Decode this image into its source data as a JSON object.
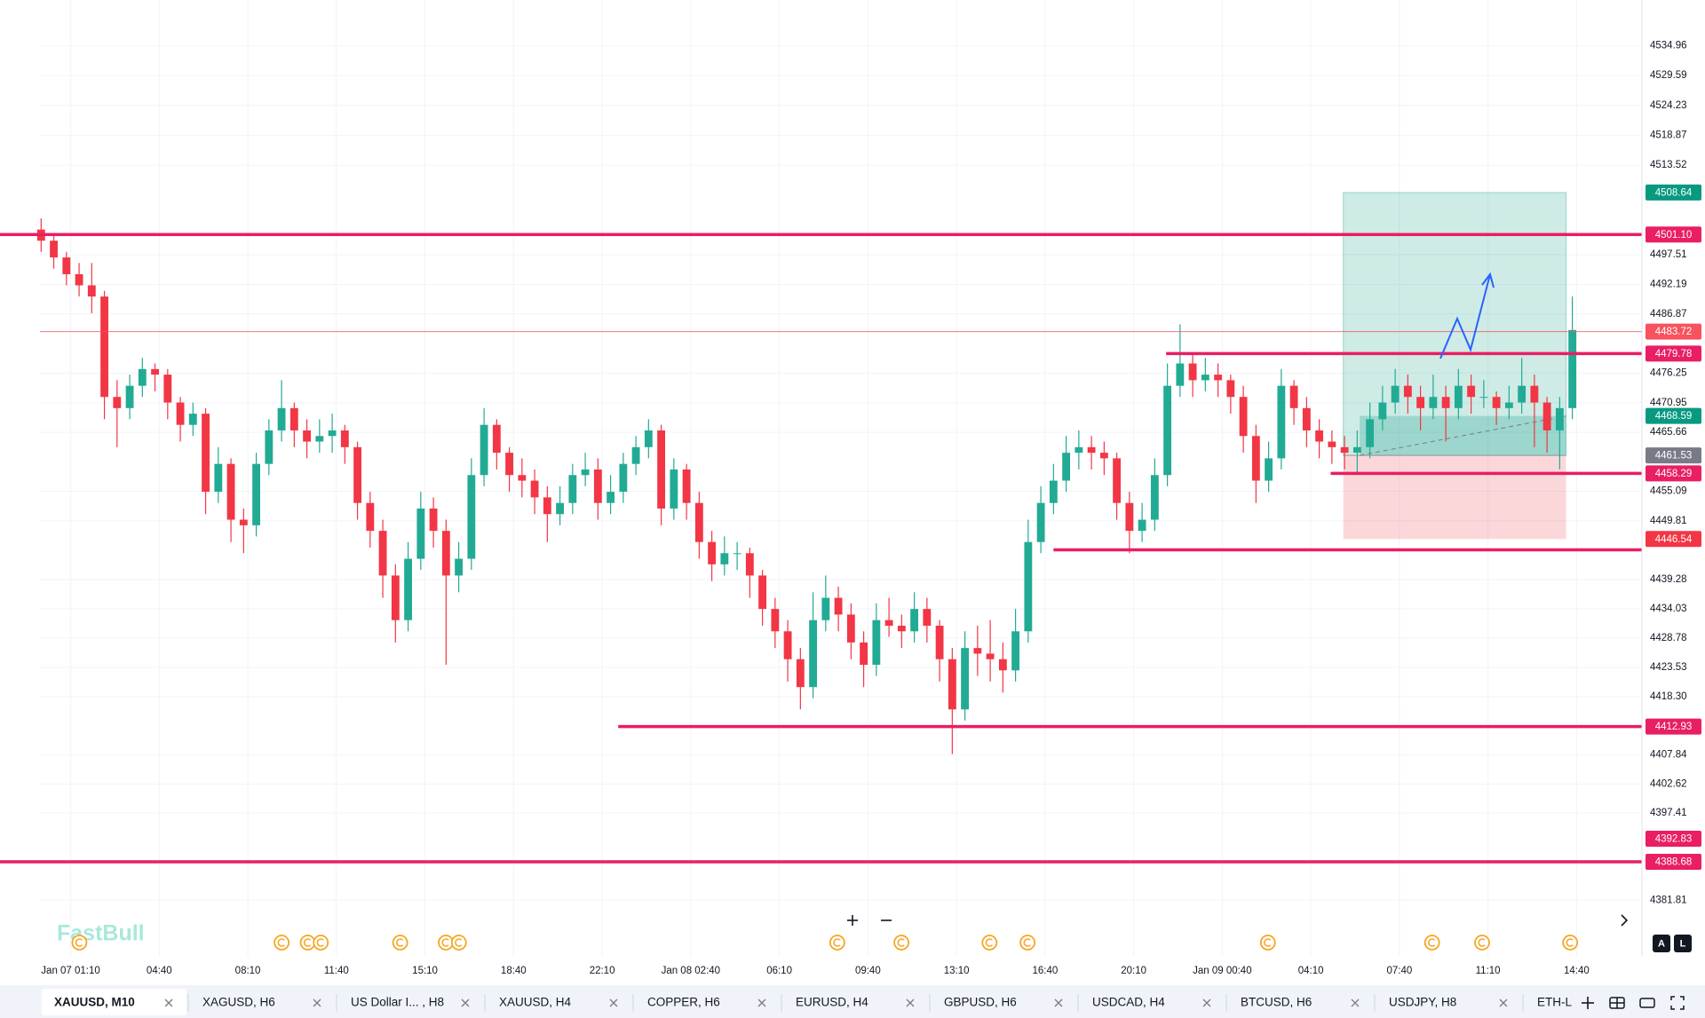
{
  "watermark": "FastBull",
  "tabs": [
    "XAUUSD, M10",
    "XAGUSD, H6",
    "US Dollar I... , H8",
    "XAUUSD, H4",
    "COPPER, H6",
    "EURUSD, H4",
    "GBPUSD, H6",
    "USDCAD, H4",
    "BTCUSD, H6",
    "USDJPY, H8",
    "ETH-L"
  ],
  "scale_buttons": [
    "A",
    "L"
  ],
  "chart_data": {
    "type": "candlestick",
    "up_color": "#22ab94",
    "down_color": "#f23645",
    "grid": true,
    "xlim": [
      -3.25,
      126.5
    ],
    "ylim": [
      4371.67,
      4543.14
    ],
    "xticks": [
      {
        "value": 2.333,
        "label": "Jan 07 01:10"
      },
      {
        "value": 9.333,
        "label": "04:40"
      },
      {
        "value": 16.333,
        "label": "08:10"
      },
      {
        "value": 23.333,
        "label": "11:40"
      },
      {
        "value": 30.333,
        "label": "15:10"
      },
      {
        "value": 37.333,
        "label": "18:40"
      },
      {
        "value": 44.333,
        "label": "22:10"
      },
      {
        "value": 51.333,
        "label": "Jan 08 02:40"
      },
      {
        "value": 58.333,
        "label": "06:10"
      },
      {
        "value": 65.333,
        "label": "09:40"
      },
      {
        "value": 72.333,
        "label": "13:10"
      },
      {
        "value": 79.333,
        "label": "16:40"
      },
      {
        "value": 86.333,
        "label": "20:10"
      },
      {
        "value": 93.333,
        "label": "Jan 09 00:40"
      },
      {
        "value": 100.333,
        "label": "04:10"
      },
      {
        "value": 107.333,
        "label": "07:40"
      },
      {
        "value": 114.333,
        "label": "11:10"
      },
      {
        "value": 121.333,
        "label": "14:40"
      }
    ],
    "yticks": [
      4534.96,
      4529.59,
      4524.23,
      4518.87,
      4513.52,
      4497.51,
      4492.19,
      4486.87,
      4476.25,
      4470.95,
      4465.66,
      4455.09,
      4449.81,
      4439.28,
      4434.03,
      4428.78,
      4423.53,
      {
        "value": 4418.3,
        "label": "4418.30"
      },
      4407.84,
      4402.62,
      4397.41,
      4381.81
    ],
    "ohlc": [
      [
        4502,
        4504,
        4498,
        4500
      ],
      [
        4500,
        4501,
        4495,
        4497
      ],
      [
        4497,
        4498,
        4492,
        4494
      ],
      [
        4494,
        4496,
        4490,
        4492
      ],
      [
        4492,
        4496,
        4487,
        4490
      ],
      [
        4490,
        4491,
        4468,
        4472
      ],
      [
        4472,
        4475,
        4463,
        4470
      ],
      [
        4470,
        4476,
        4468,
        4474
      ],
      [
        4474,
        4479,
        4472,
        4477
      ],
      [
        4477,
        4478,
        4473,
        4476
      ],
      [
        4476,
        4477,
        4468,
        4471
      ],
      [
        4471,
        4472,
        4464,
        4467
      ],
      [
        4467,
        4471,
        4465,
        4469
      ],
      [
        4469,
        4470,
        4451,
        4455
      ],
      [
        4455,
        4463,
        4453,
        4460
      ],
      [
        4460,
        4461,
        4446,
        4450
      ],
      [
        4450,
        4452,
        4444,
        4449
      ],
      [
        4449,
        4462,
        4447,
        4460
      ],
      [
        4460,
        4468,
        4458,
        4466
      ],
      [
        4466,
        4475,
        4464,
        4470
      ],
      [
        4470,
        4471,
        4463,
        4466
      ],
      [
        4466,
        4468,
        4461,
        4464
      ],
      [
        4464,
        4468,
        4462,
        4465
      ],
      [
        4465,
        4469,
        4462,
        4466
      ],
      [
        4466,
        4467,
        4460,
        4463
      ],
      [
        4463,
        4464,
        4450,
        4453
      ],
      [
        4453,
        4455,
        4445,
        4448
      ],
      [
        4448,
        4450,
        4436,
        4440
      ],
      [
        4440,
        4442,
        4428,
        4432
      ],
      [
        4432,
        4446,
        4430,
        4443
      ],
      [
        4443,
        4455,
        4441,
        4452
      ],
      [
        4452,
        4454,
        4445,
        4448
      ],
      [
        4448,
        4450,
        4424,
        4440
      ],
      [
        4440,
        4446,
        4437,
        4443
      ],
      [
        4443,
        4461,
        4441,
        4458
      ],
      [
        4458,
        4470,
        4456,
        4467
      ],
      [
        4467,
        4468,
        4459,
        4462
      ],
      [
        4462,
        4463,
        4455,
        4458
      ],
      [
        4458,
        4461,
        4454,
        4457
      ],
      [
        4457,
        4459,
        4451,
        4454
      ],
      [
        4454,
        4456,
        4446,
        4451
      ],
      [
        4451,
        4456,
        4449,
        4453
      ],
      [
        4453,
        4460,
        4451,
        4458
      ],
      [
        4458,
        4462,
        4456,
        4459
      ],
      [
        4459,
        4461,
        4450,
        4453
      ],
      [
        4453,
        4458,
        4451,
        4455
      ],
      [
        4455,
        4462,
        4453,
        4460
      ],
      [
        4460,
        4465,
        4458,
        4463
      ],
      [
        4463,
        4468,
        4461,
        4466
      ],
      [
        4466,
        4467,
        4449,
        4452
      ],
      [
        4452,
        4461,
        4450,
        4459
      ],
      [
        4459,
        4460,
        4450,
        4453
      ],
      [
        4453,
        4455,
        4443,
        4446
      ],
      [
        4446,
        4448,
        4439,
        4442
      ],
      [
        4442,
        4447,
        4440,
        4444
      ],
      [
        4444,
        4446,
        4441,
        4444
      ],
      [
        4444,
        4445,
        4436,
        4440
      ],
      [
        4440,
        4441,
        4431,
        4434
      ],
      [
        4434,
        4436,
        4427,
        4430
      ],
      [
        4430,
        4432,
        4421,
        4425
      ],
      [
        4425,
        4427,
        4416,
        4420
      ],
      [
        4420,
        4437,
        4418,
        4432
      ],
      [
        4432,
        4440,
        4430,
        4436
      ],
      [
        4436,
        4438,
        4430,
        4433
      ],
      [
        4433,
        4435,
        4425,
        4428
      ],
      [
        4428,
        4430,
        4420,
        4424
      ],
      [
        4424,
        4435,
        4422,
        4432
      ],
      [
        4432,
        4436,
        4429,
        4431
      ],
      [
        4431,
        4433,
        4427,
        4430
      ],
      [
        4430,
        4437,
        4428,
        4434
      ],
      [
        4434,
        4436,
        4428,
        4431
      ],
      [
        4431,
        4432,
        4421,
        4425
      ],
      [
        4425,
        4427,
        4408,
        4416
      ],
      [
        4416,
        4430,
        4414,
        4427
      ],
      [
        4427,
        4431,
        4422,
        4426
      ],
      [
        4426,
        4432,
        4421,
        4425
      ],
      [
        4425,
        4428,
        4419,
        4423
      ],
      [
        4423,
        4434,
        4421,
        4430
      ],
      [
        4430,
        4450,
        4428,
        4446
      ],
      [
        4446,
        4456,
        4444,
        4453
      ],
      [
        4453,
        4460,
        4451,
        4457
      ],
      [
        4457,
        4465,
        4455,
        4462
      ],
      [
        4462,
        4466,
        4459,
        4463
      ],
      [
        4463,
        4465,
        4459,
        4462
      ],
      [
        4462,
        4464,
        4458,
        4461
      ],
      [
        4461,
        4462,
        4450,
        4453
      ],
      [
        4453,
        4455,
        4444,
        4448
      ],
      [
        4448,
        4453,
        4446,
        4450
      ],
      [
        4450,
        4461,
        4448,
        4458
      ],
      [
        4458,
        4478,
        4456,
        4474
      ],
      [
        4474,
        4485,
        4472,
        4478
      ],
      [
        4478,
        4480,
        4472,
        4475
      ],
      [
        4475,
        4479,
        4473,
        4476
      ],
      [
        4476,
        4478,
        4472,
        4475
      ],
      [
        4475,
        4476,
        4469,
        4472
      ],
      [
        4472,
        4474,
        4462,
        4465
      ],
      [
        4465,
        4467,
        4453,
        4457
      ],
      [
        4457,
        4464,
        4455,
        4461
      ],
      [
        4461,
        4477,
        4459,
        4474
      ],
      [
        4474,
        4475,
        4467,
        4470
      ],
      [
        4470,
        4472,
        4463,
        4466
      ],
      [
        4466,
        4468,
        4461,
        4464
      ],
      [
        4464,
        4466,
        4460,
        4463
      ],
      [
        4463,
        4465,
        4459,
        4462
      ],
      [
        4462,
        4466,
        4458,
        4463
      ],
      [
        4463,
        4471,
        4461,
        4468
      ],
      [
        4468,
        4474,
        4466,
        4471
      ],
      [
        4471,
        4477,
        4469,
        4474
      ],
      [
        4474,
        4476,
        4469,
        4472
      ],
      [
        4472,
        4474,
        4466,
        4470
      ],
      [
        4470,
        4476,
        4468,
        4472
      ],
      [
        4472,
        4474,
        4464,
        4470
      ],
      [
        4470,
        4477,
        4468,
        4474
      ],
      [
        4474,
        4476,
        4469,
        4472
      ],
      [
        4472,
        4475,
        4470,
        4472
      ],
      [
        4472,
        4473,
        4467,
        4470
      ],
      [
        4470,
        4474,
        4468,
        4471
      ],
      [
        4471,
        4479,
        4469,
        4474
      ],
      [
        4474,
        4476,
        4463,
        4471
      ],
      [
        4471,
        4472,
        4462,
        4466
      ],
      [
        4466,
        4472,
        4459,
        4470
      ],
      [
        4470,
        4490,
        4468,
        4484
      ]
    ],
    "levels": [
      {
        "value": 4501.1,
        "from": -3.25,
        "color": "#e91e63"
      },
      {
        "value": 4479.78,
        "from": 88.9,
        "color": "#e91e63"
      },
      {
        "value": 4458.29,
        "from": 101.9,
        "color": "#e91e63"
      },
      {
        "value": 4444.6,
        "from": 80.0,
        "color": "#e91e63"
      },
      {
        "value": 4412.93,
        "from": 45.6,
        "color": "#e91e63"
      },
      {
        "value": 4388.68,
        "from": -3.25,
        "color": "#e91e63"
      }
    ],
    "position": {
      "from": 102.9,
      "to": 120.5,
      "target": 4508.64,
      "entry": 4461.53,
      "stop": 4446.54,
      "avg_from": 104.2,
      "avg_price": 4468.59
    },
    "price_labels": [
      {
        "value": 4508.64,
        "color": "#089981"
      },
      {
        "value": 4501.1,
        "label": "4501.10",
        "color": "#e91e63"
      },
      {
        "value": 4483.72,
        "color": "#f7525f",
        "line": true
      },
      {
        "value": 4479.78,
        "color": "#e91e63"
      },
      {
        "value": 4468.59,
        "color": "#089981"
      },
      {
        "value": 4461.53,
        "color": "#787b86"
      },
      {
        "value": 4458.29,
        "color": "#e91e63"
      },
      {
        "value": 4446.54,
        "color": "#f23645"
      },
      {
        "value": 4412.93,
        "color": "#e91e63"
      },
      {
        "value": 4392.83,
        "color": "#e91e63"
      },
      {
        "value": 4388.68,
        "color": "#e91e63"
      }
    ]
  }
}
